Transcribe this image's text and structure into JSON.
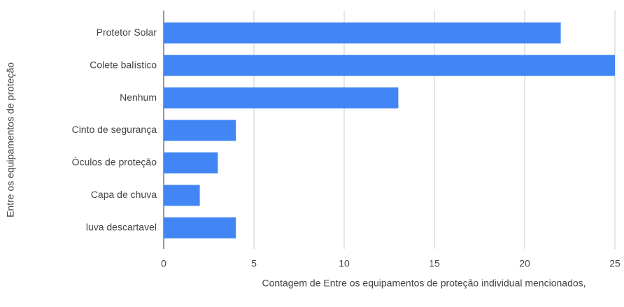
{
  "chart_data": {
    "type": "bar",
    "orientation": "horizontal",
    "x_label": "Contagem de Entre os equipamentos de proteção individual mencionados,",
    "y_label": "Entre os equipamentos de proteção",
    "categories": [
      "Protetor Solar",
      "Colete balístico",
      "Nenhum",
      "Cinto de segurança",
      "Óculos de proteção",
      "Capa de chuva",
      "luva descartavel"
    ],
    "values": [
      22,
      25,
      13,
      4,
      3,
      2,
      4
    ],
    "color": "#4285f4",
    "xlim": [
      0,
      25
    ],
    "xticks": [
      0,
      5,
      10,
      15,
      20,
      25
    ],
    "grid": true
  }
}
